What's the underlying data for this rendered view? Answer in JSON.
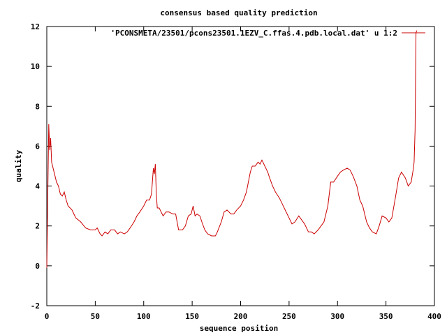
{
  "chart_data": {
    "type": "line",
    "title": "consensus based quality prediction",
    "xlabel": "sequence position",
    "ylabel": "quality",
    "xlim": [
      0,
      400
    ],
    "ylim": [
      -2,
      12
    ],
    "xticks": [
      0,
      50,
      100,
      150,
      200,
      250,
      300,
      350,
      400
    ],
    "yticks": [
      -2,
      0,
      2,
      4,
      6,
      8,
      10,
      12
    ],
    "grid": false,
    "legend_position": "top-right",
    "series": [
      {
        "name": "'PCONSMETA/23501/pcons23501.1EZV_C.ffas.4.pdb.local.dat' u 1:2",
        "color": "#cc0000",
        "x": [
          0,
          1,
          2,
          3,
          4,
          5,
          6,
          8,
          10,
          12,
          14,
          16,
          18,
          20,
          22,
          24,
          26,
          28,
          30,
          35,
          40,
          45,
          50,
          52,
          55,
          57,
          60,
          63,
          66,
          70,
          73,
          76,
          80,
          83,
          86,
          90,
          93,
          96,
          100,
          103,
          106,
          108,
          110,
          111,
          112,
          113,
          114,
          116,
          118,
          120,
          123,
          126,
          130,
          133,
          136,
          140,
          143,
          146,
          149,
          151,
          153,
          155,
          158,
          160,
          163,
          166,
          170,
          174,
          176,
          180,
          183,
          186,
          190,
          193,
          196,
          200,
          203,
          206,
          208,
          210,
          212,
          215,
          218,
          220,
          222,
          225,
          228,
          230,
          233,
          236,
          240,
          243,
          246,
          250,
          253,
          256,
          260,
          263,
          266,
          270,
          273,
          276,
          280,
          283,
          286,
          290,
          293,
          296,
          300,
          303,
          306,
          310,
          313,
          316,
          320,
          323,
          326,
          330,
          333,
          336,
          340,
          343,
          346,
          350,
          353,
          356,
          360,
          363,
          366,
          370,
          373,
          376,
          378,
          379,
          380,
          381,
          382
        ],
        "y": [
          -0.1,
          3.5,
          7.1,
          5.8,
          6.4,
          5.2,
          5.0,
          4.6,
          4.2,
          4.0,
          3.6,
          3.5,
          3.7,
          3.3,
          3.0,
          2.9,
          2.8,
          2.6,
          2.4,
          2.2,
          1.9,
          1.8,
          1.8,
          1.9,
          1.6,
          1.5,
          1.7,
          1.6,
          1.8,
          1.8,
          1.6,
          1.7,
          1.6,
          1.7,
          1.9,
          2.2,
          2.5,
          2.7,
          3.0,
          3.3,
          3.3,
          3.6,
          4.9,
          4.6,
          5.1,
          3.6,
          2.9,
          2.9,
          2.7,
          2.5,
          2.7,
          2.7,
          2.6,
          2.6,
          1.8,
          1.8,
          2.0,
          2.5,
          2.6,
          3.0,
          2.5,
          2.6,
          2.5,
          2.2,
          1.8,
          1.6,
          1.5,
          1.5,
          1.7,
          2.2,
          2.7,
          2.8,
          2.6,
          2.6,
          2.8,
          3.0,
          3.3,
          3.7,
          4.2,
          4.7,
          5.0,
          5.0,
          5.2,
          5.1,
          5.3,
          5.0,
          4.7,
          4.4,
          4.0,
          3.7,
          3.4,
          3.1,
          2.8,
          2.4,
          2.1,
          2.2,
          2.5,
          2.3,
          2.1,
          1.7,
          1.7,
          1.6,
          1.8,
          2.0,
          2.2,
          3.0,
          4.2,
          4.2,
          4.5,
          4.7,
          4.8,
          4.9,
          4.8,
          4.5,
          4.0,
          3.3,
          3.0,
          2.2,
          1.9,
          1.7,
          1.6,
          2.0,
          2.5,
          2.4,
          2.2,
          2.4,
          3.5,
          4.4,
          4.7,
          4.4,
          4.0,
          4.2,
          4.8,
          5.2,
          6.8,
          11.7,
          11.8
        ]
      }
    ]
  }
}
